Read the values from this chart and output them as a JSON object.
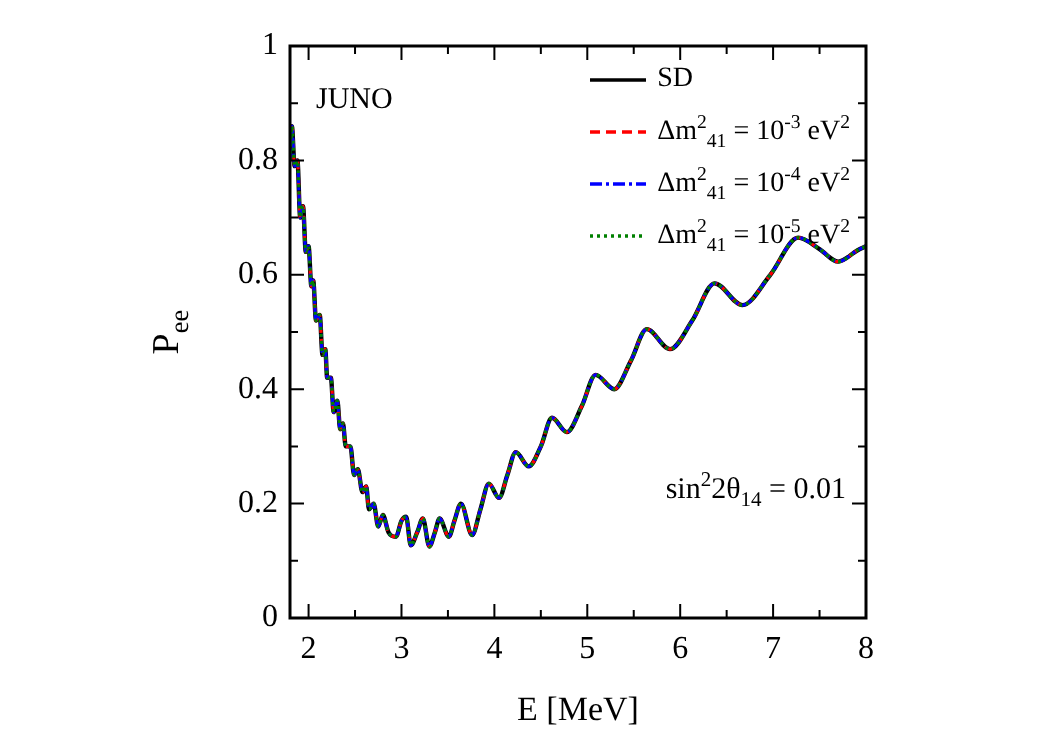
{
  "chart_data": {
    "type": "line",
    "xlabel": "E [MeV]",
    "ylabel": "P$_{ee}$",
    "annotations": [
      "JUNO",
      "sin$^{2}$2θ$_{14}$ = 0.01"
    ],
    "x": [
      1.8,
      1.82,
      1.85,
      1.88,
      1.91,
      1.94,
      1.97,
      2.0,
      2.03,
      2.05,
      2.08,
      2.12,
      2.15,
      2.18,
      2.2,
      2.24,
      2.27,
      2.31,
      2.34,
      2.37,
      2.4,
      2.45,
      2.49,
      2.53,
      2.58,
      2.62,
      2.65,
      2.7,
      2.75,
      2.8,
      2.86,
      2.94,
      3.0,
      3.05,
      3.1,
      3.17,
      3.23,
      3.3,
      3.36,
      3.41,
      3.51,
      3.57,
      3.64,
      3.76,
      3.85,
      3.94,
      4.05,
      4.14,
      4.23,
      4.37,
      4.5,
      4.62,
      4.78,
      4.94,
      5.09,
      5.29,
      5.47,
      5.64,
      5.89,
      6.13,
      6.37,
      6.67,
      6.97,
      7.27,
      7.5,
      7.7,
      7.91,
      8.0
    ],
    "series": [
      {
        "name": "SD",
        "color": "#000000",
        "line_style": "solid",
        "values": [
          0.8,
          0.86,
          0.79,
          0.8,
          0.7,
          0.72,
          0.64,
          0.65,
          0.58,
          0.59,
          0.52,
          0.53,
          0.46,
          0.47,
          0.42,
          0.42,
          0.36,
          0.38,
          0.33,
          0.34,
          0.3,
          0.3,
          0.25,
          0.26,
          0.22,
          0.23,
          0.19,
          0.2,
          0.16,
          0.18,
          0.15,
          0.142,
          0.17,
          0.177,
          0.127,
          0.15,
          0.174,
          0.125,
          0.15,
          0.174,
          0.142,
          0.17,
          0.2,
          0.145,
          0.19,
          0.235,
          0.21,
          0.25,
          0.29,
          0.265,
          0.3,
          0.35,
          0.325,
          0.37,
          0.425,
          0.4,
          0.45,
          0.505,
          0.47,
          0.52,
          0.585,
          0.547,
          0.6,
          0.665,
          0.645,
          0.623,
          0.643,
          0.65
        ]
      },
      {
        "name": "Δm$^{2}$$_{41}$ = 10$^{-3}$ eV$^{2}$",
        "color": "#ff0000",
        "line_style": "dashed",
        "values": [
          0.8,
          0.86,
          0.79,
          0.8,
          0.7,
          0.72,
          0.64,
          0.65,
          0.58,
          0.59,
          0.52,
          0.53,
          0.46,
          0.47,
          0.42,
          0.42,
          0.36,
          0.38,
          0.33,
          0.34,
          0.3,
          0.3,
          0.25,
          0.26,
          0.22,
          0.23,
          0.19,
          0.2,
          0.16,
          0.18,
          0.15,
          0.142,
          0.17,
          0.177,
          0.127,
          0.15,
          0.174,
          0.125,
          0.15,
          0.174,
          0.142,
          0.17,
          0.2,
          0.145,
          0.19,
          0.235,
          0.21,
          0.25,
          0.29,
          0.265,
          0.3,
          0.35,
          0.325,
          0.37,
          0.425,
          0.4,
          0.45,
          0.505,
          0.47,
          0.52,
          0.585,
          0.547,
          0.6,
          0.665,
          0.645,
          0.623,
          0.643,
          0.65
        ]
      },
      {
        "name": "Δm$^{2}$$_{41}$ = 10$^{-4}$ eV$^{2}$",
        "color": "#0000ff",
        "line_style": "dashdot",
        "values": [
          0.8,
          0.86,
          0.79,
          0.8,
          0.7,
          0.72,
          0.64,
          0.65,
          0.58,
          0.59,
          0.52,
          0.53,
          0.46,
          0.47,
          0.42,
          0.42,
          0.36,
          0.38,
          0.33,
          0.34,
          0.3,
          0.3,
          0.25,
          0.26,
          0.22,
          0.23,
          0.19,
          0.2,
          0.16,
          0.18,
          0.15,
          0.142,
          0.17,
          0.177,
          0.127,
          0.15,
          0.174,
          0.125,
          0.15,
          0.174,
          0.142,
          0.17,
          0.2,
          0.145,
          0.19,
          0.235,
          0.21,
          0.25,
          0.29,
          0.265,
          0.3,
          0.35,
          0.325,
          0.37,
          0.425,
          0.4,
          0.45,
          0.505,
          0.47,
          0.52,
          0.585,
          0.547,
          0.6,
          0.665,
          0.645,
          0.623,
          0.643,
          0.65
        ]
      },
      {
        "name": "Δm$^{2}$$_{41}$ = 10$^{-5}$ eV$^{2}$",
        "color": "#008000",
        "line_style": "dotted",
        "values": [
          0.8,
          0.86,
          0.79,
          0.8,
          0.7,
          0.72,
          0.64,
          0.65,
          0.58,
          0.59,
          0.52,
          0.53,
          0.46,
          0.47,
          0.42,
          0.42,
          0.36,
          0.38,
          0.33,
          0.34,
          0.3,
          0.3,
          0.25,
          0.26,
          0.22,
          0.23,
          0.19,
          0.2,
          0.16,
          0.18,
          0.15,
          0.142,
          0.17,
          0.177,
          0.127,
          0.15,
          0.174,
          0.125,
          0.15,
          0.174,
          0.142,
          0.17,
          0.2,
          0.145,
          0.19,
          0.235,
          0.21,
          0.25,
          0.29,
          0.265,
          0.3,
          0.35,
          0.325,
          0.37,
          0.425,
          0.4,
          0.45,
          0.505,
          0.47,
          0.52,
          0.585,
          0.547,
          0.6,
          0.665,
          0.645,
          0.623,
          0.643,
          0.65
        ]
      }
    ],
    "xlim": [
      1.8,
      8
    ],
    "xticks": [
      2,
      {
        "value": 2.5,
        "label": null
      },
      3,
      {
        "value": 3.5,
        "label": null
      },
      4,
      {
        "value": 4.5,
        "label": null
      },
      5,
      {
        "value": 5.5,
        "label": null
      },
      6,
      {
        "value": 6.5,
        "label": null
      },
      7,
      {
        "value": 7.5,
        "label": null
      },
      8
    ],
    "ylim": [
      0,
      1
    ],
    "yticks": [
      0,
      {
        "value": 0.1,
        "label": null
      },
      0.2,
      {
        "value": 0.3,
        "label": null
      },
      0.4,
      {
        "value": 0.5,
        "label": null
      },
      0.6,
      {
        "value": 0.7,
        "label": null
      },
      0.8,
      {
        "value": 0.9,
        "label": null
      },
      1
    ],
    "grid": false,
    "legend": "top right",
    "marker": "none"
  }
}
